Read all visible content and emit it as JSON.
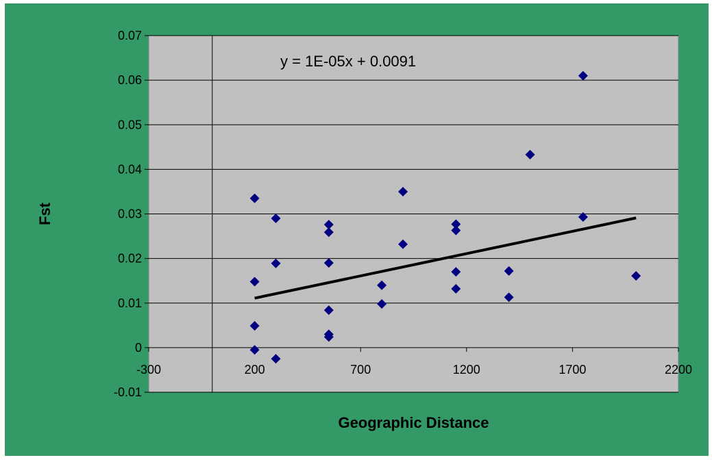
{
  "chart_data": {
    "type": "scatter",
    "title": "",
    "xlabel": "Geographic Distance",
    "ylabel": "Fst",
    "xlim": [
      -300,
      2200
    ],
    "ylim": [
      -0.01,
      0.07
    ],
    "x_ticks": [
      -300,
      200,
      700,
      1200,
      1700,
      2200
    ],
    "x_tick_labels": [
      "-300",
      "200",
      "700",
      "1200",
      "1700",
      "2200"
    ],
    "y_ticks": [
      -0.01,
      0,
      0.01,
      0.02,
      0.03,
      0.04,
      0.05,
      0.06,
      0.07
    ],
    "y_tick_labels": [
      "-0.01",
      "0",
      "0.01",
      "0.02",
      "0.03",
      "0.04",
      "0.05",
      "0.06",
      "0.07"
    ],
    "grid": "horizontal",
    "legend": "none",
    "marker_color": "#000080",
    "plot_background": "#c0c0c0",
    "chart_background": "#339966",
    "series": [
      {
        "points": [
          {
            "x": 200,
            "y": 0.0335
          },
          {
            "x": 200,
            "y": 0.0148
          },
          {
            "x": 200,
            "y": 0.0049
          },
          {
            "x": 200,
            "y": -0.0005
          },
          {
            "x": 300,
            "y": 0.029
          },
          {
            "x": 300,
            "y": 0.0189
          },
          {
            "x": 300,
            "y": -0.0025
          },
          {
            "x": 550,
            "y": 0.0276
          },
          {
            "x": 550,
            "y": 0.0259
          },
          {
            "x": 550,
            "y": 0.019
          },
          {
            "x": 550,
            "y": 0.0084
          },
          {
            "x": 550,
            "y": 0.003
          },
          {
            "x": 550,
            "y": 0.0024
          },
          {
            "x": 800,
            "y": 0.014
          },
          {
            "x": 800,
            "y": 0.0098
          },
          {
            "x": 900,
            "y": 0.035
          },
          {
            "x": 900,
            "y": 0.0232
          },
          {
            "x": 1150,
            "y": 0.0277
          },
          {
            "x": 1150,
            "y": 0.0263
          },
          {
            "x": 1150,
            "y": 0.017
          },
          {
            "x": 1150,
            "y": 0.0132
          },
          {
            "x": 1400,
            "y": 0.0172
          },
          {
            "x": 1400,
            "y": 0.0113
          },
          {
            "x": 1500,
            "y": 0.0433
          },
          {
            "x": 1750,
            "y": 0.061
          },
          {
            "x": 1750,
            "y": 0.0293
          },
          {
            "x": 2000,
            "y": 0.0161
          }
        ]
      }
    ],
    "trendline": {
      "equation": "y = 1E-05x + 0.0091",
      "slope": 1e-05,
      "intercept": 0.0091,
      "x_range": [
        200,
        2000
      ],
      "color": "#000000"
    }
  }
}
